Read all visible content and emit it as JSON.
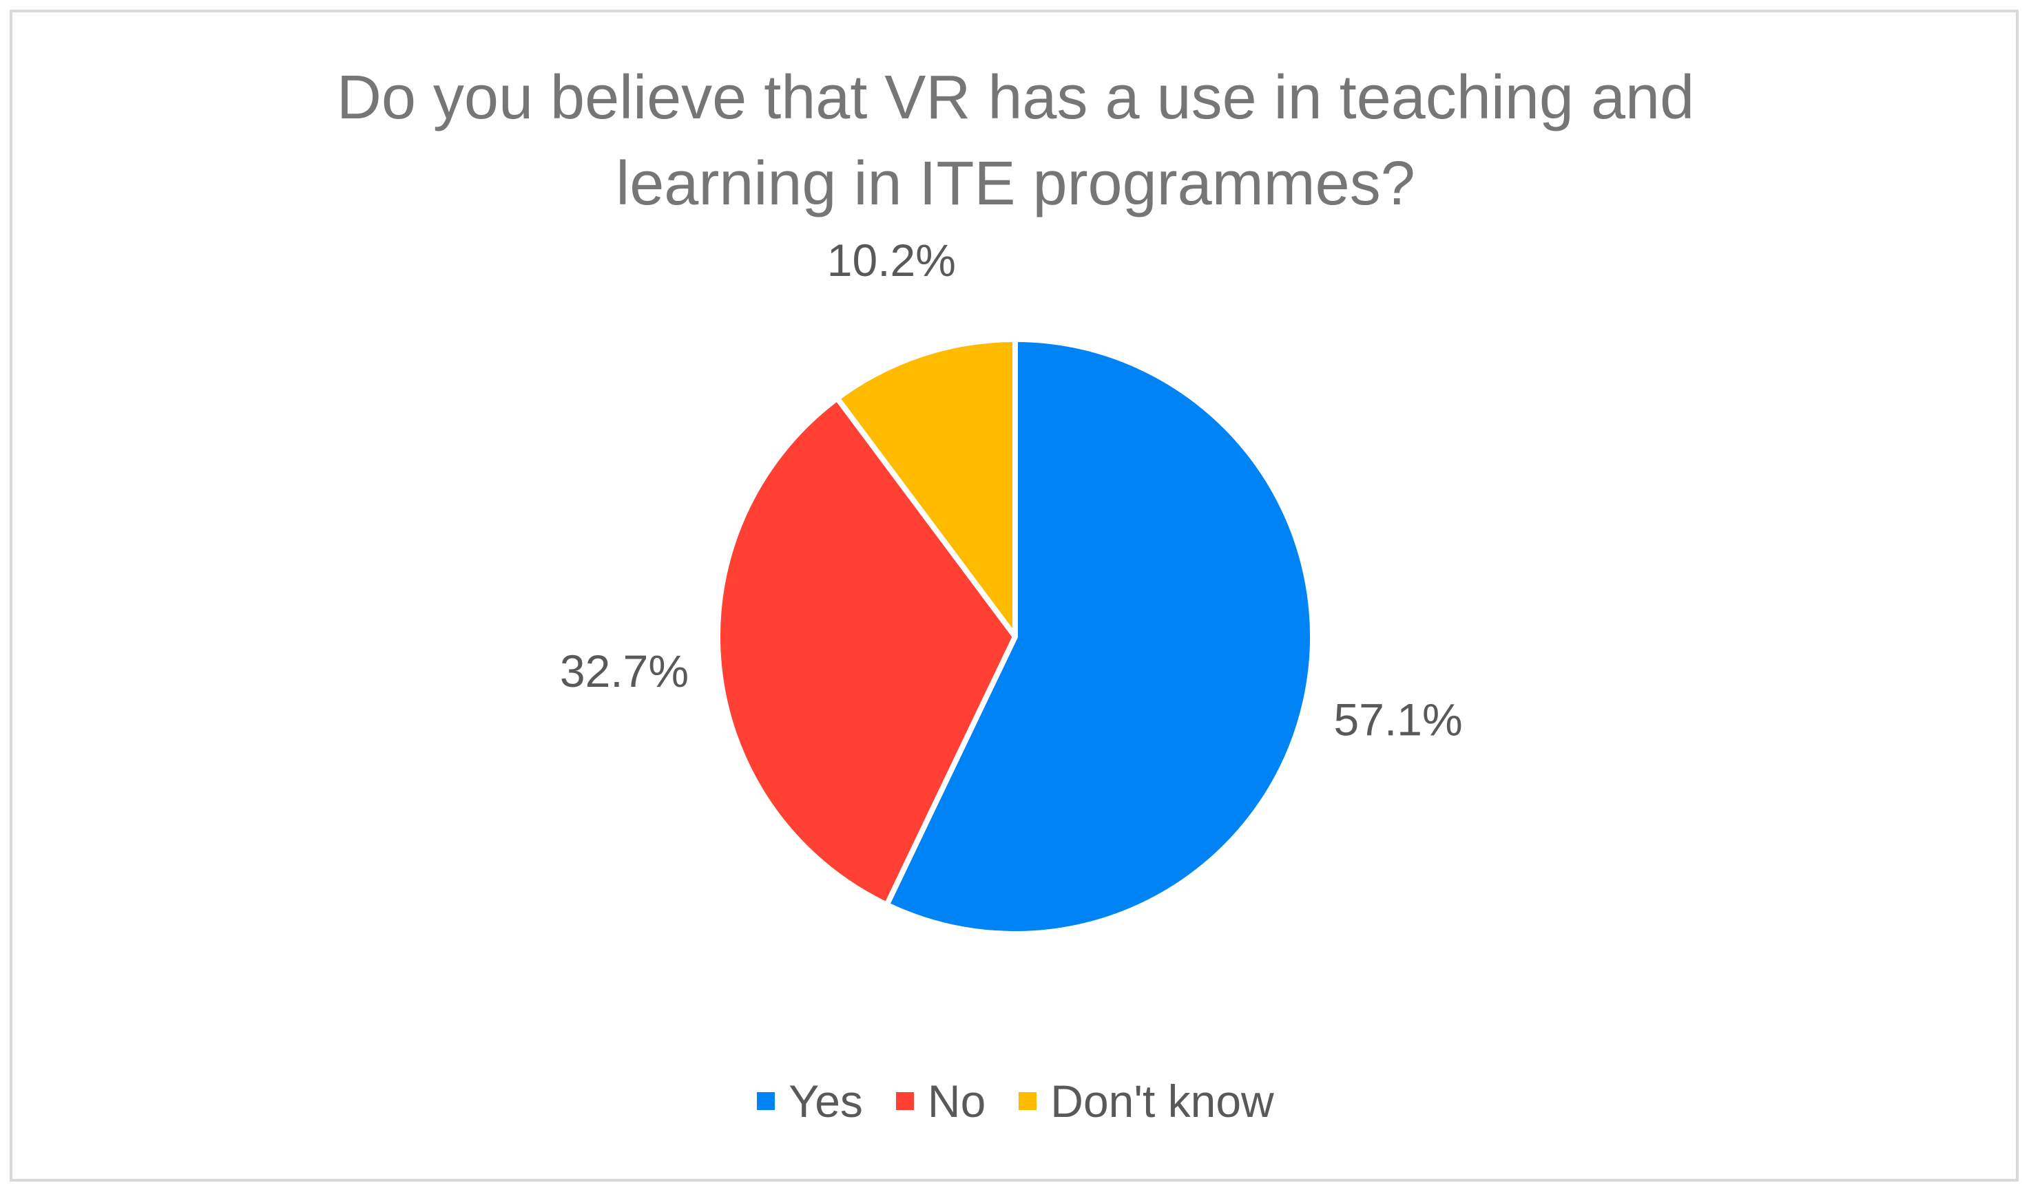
{
  "chart_data": {
    "type": "pie",
    "title_lines": [
      "Do you believe that VR has a use in teaching and",
      "learning in ITE programmes?"
    ],
    "categories": [
      "Yes",
      "No",
      "Don't know"
    ],
    "values": [
      57.1,
      32.7,
      10.2
    ],
    "data_labels": [
      "57.1%",
      "32.7%",
      "10.2%"
    ],
    "colors": [
      "#0083f5",
      "#ff4032",
      "#ffbb00"
    ],
    "legend_position": "bottom",
    "start_angle": "12 o'clock",
    "direction": "clockwise"
  }
}
